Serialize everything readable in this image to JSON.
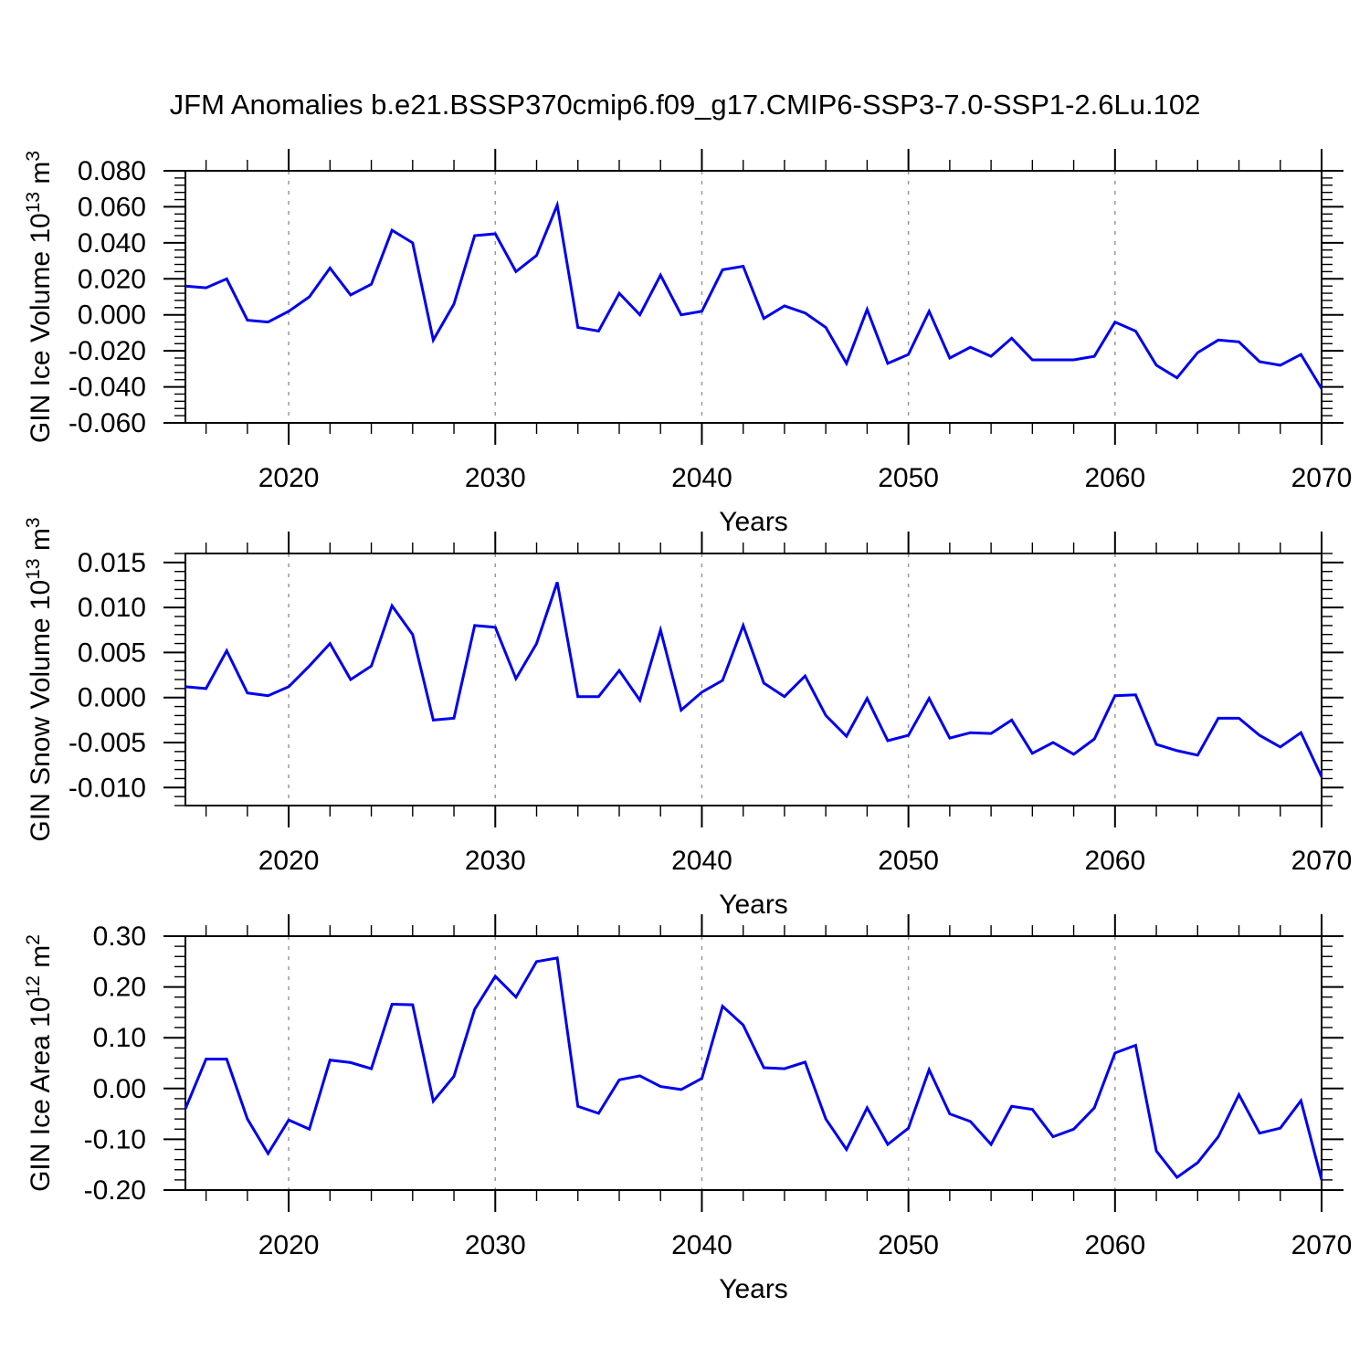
{
  "title": "JFM Anomalies b.e21.BSSP370cmip6.f09_g17.CMIP6-SSP3-7.0-SSP1-2.6Lu.102",
  "line_color": "#0000ee",
  "grid_color": "#999999",
  "axis_color": "#000000",
  "years": [
    2015,
    2016,
    2017,
    2018,
    2019,
    2020,
    2021,
    2022,
    2023,
    2024,
    2025,
    2026,
    2027,
    2028,
    2029,
    2030,
    2031,
    2032,
    2033,
    2034,
    2035,
    2036,
    2037,
    2038,
    2039,
    2040,
    2041,
    2042,
    2043,
    2044,
    2045,
    2046,
    2047,
    2048,
    2049,
    2050,
    2051,
    2052,
    2053,
    2054,
    2055,
    2056,
    2057,
    2058,
    2059,
    2060,
    2061,
    2062,
    2063,
    2064,
    2065,
    2066,
    2067,
    2068,
    2069,
    2070
  ],
  "x_axis": {
    "label": "Years",
    "range": [
      2015,
      2070
    ],
    "tick_values": [
      2020,
      2030,
      2040,
      2050,
      2060,
      2070
    ],
    "tick_labels": [
      "2020",
      "2030",
      "2040",
      "2050",
      "2060",
      "2070"
    ],
    "minor_tick_step": 2,
    "gridline_values": [
      2020,
      2030,
      2040,
      2050,
      2060
    ]
  },
  "chart_data": [
    {
      "type": "line",
      "name": "gin-ice-volume",
      "ylabel": "GIN Ice Volume 10^13 m^3",
      "ylim": [
        -0.06,
        0.08
      ],
      "y_tick_values": [
        0.08,
        0.06,
        0.04,
        0.02,
        0.0,
        -0.02,
        -0.04,
        -0.06
      ],
      "y_tick_labels": [
        "0.080",
        "0.060",
        "0.040",
        "0.020",
        "0.000",
        "-0.020",
        "-0.040",
        "-0.060"
      ],
      "y_minor_step": 0.004,
      "values": [
        0.016,
        0.015,
        0.02,
        -0.003,
        -0.004,
        0.002,
        0.01,
        0.026,
        0.011,
        0.017,
        0.047,
        0.04,
        -0.014,
        0.006,
        0.044,
        0.045,
        0.024,
        0.033,
        0.061,
        -0.007,
        -0.009,
        0.012,
        0.0,
        0.022,
        0.0,
        0.002,
        0.025,
        0.027,
        -0.002,
        0.005,
        0.001,
        -0.007,
        -0.027,
        0.003,
        -0.027,
        -0.022,
        0.002,
        -0.024,
        -0.018,
        -0.023,
        -0.013,
        -0.025,
        -0.025,
        -0.025,
        -0.023,
        -0.004,
        -0.009,
        -0.028,
        -0.035,
        -0.021,
        -0.014,
        -0.015,
        -0.026,
        -0.028,
        -0.022,
        -0.041
      ]
    },
    {
      "type": "line",
      "name": "gin-snow-volume",
      "ylabel": "GIN Snow Volume 10^13 m^3",
      "ylim": [
        -0.012,
        0.016
      ],
      "y_tick_values": [
        0.015,
        0.01,
        0.005,
        0.0,
        -0.005,
        -0.01
      ],
      "y_tick_labels": [
        "0.015",
        "0.010",
        "0.005",
        "0.000",
        "-0.005",
        "-0.010"
      ],
      "y_minor_step": 0.001,
      "values": [
        0.0012,
        0.001,
        0.0052,
        0.0005,
        0.0002,
        0.0012,
        0.0035,
        0.006,
        0.002,
        0.0035,
        0.0102,
        0.007,
        -0.0025,
        -0.0023,
        0.008,
        0.0078,
        0.0021,
        0.006,
        0.0128,
        0.0001,
        0.0001,
        0.003,
        -0.0003,
        0.0075,
        -0.0014,
        0.0006,
        0.0019,
        0.008,
        0.0016,
        0.0001,
        0.0024,
        -0.002,
        -0.0043,
        -0.0001,
        -0.0048,
        -0.0042,
        -0.0001,
        -0.0045,
        -0.0039,
        -0.004,
        -0.0025,
        -0.0062,
        -0.005,
        -0.0063,
        -0.0046,
        0.0002,
        0.0003,
        -0.0052,
        -0.0059,
        -0.0064,
        -0.0023,
        -0.0023,
        -0.0042,
        -0.0055,
        -0.0039,
        -0.0088
      ]
    },
    {
      "type": "line",
      "name": "gin-ice-area",
      "ylabel": "GIN Ice Area 10^12 m^2",
      "ylim": [
        -0.2,
        0.3
      ],
      "y_tick_values": [
        0.3,
        0.2,
        0.1,
        0.0,
        -0.1,
        -0.2
      ],
      "y_tick_labels": [
        "0.30",
        "0.20",
        "0.10",
        "0.00",
        "-0.10",
        "-0.20"
      ],
      "y_minor_step": 0.02,
      "values": [
        -0.04,
        0.058,
        0.058,
        -0.06,
        -0.128,
        -0.062,
        -0.08,
        0.056,
        0.051,
        0.039,
        0.166,
        0.165,
        -0.025,
        0.024,
        0.156,
        0.221,
        0.18,
        0.25,
        0.257,
        -0.035,
        -0.049,
        0.017,
        0.025,
        0.004,
        -0.002,
        0.02,
        0.162,
        0.125,
        0.041,
        0.039,
        0.052,
        -0.06,
        -0.12,
        -0.038,
        -0.11,
        -0.078,
        0.037,
        -0.05,
        -0.065,
        -0.11,
        -0.035,
        -0.041,
        -0.095,
        -0.08,
        -0.038,
        0.07,
        0.085,
        -0.123,
        -0.175,
        -0.146,
        -0.095,
        -0.012,
        -0.088,
        -0.078,
        -0.024,
        -0.18
      ]
    }
  ]
}
